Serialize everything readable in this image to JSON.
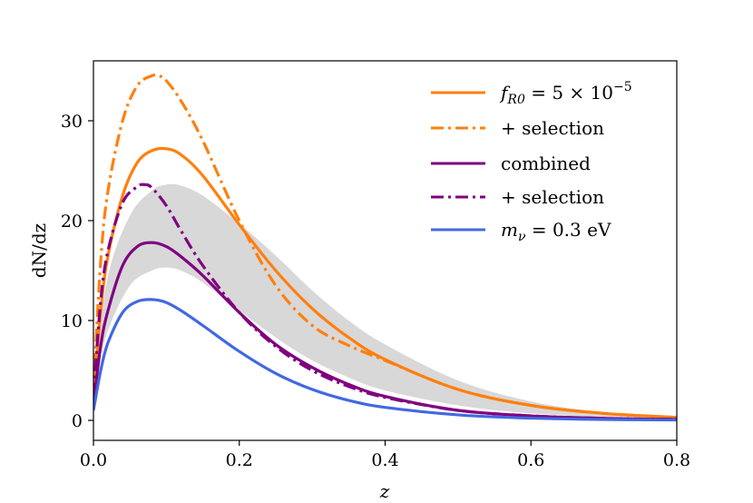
{
  "chart_data": {
    "type": "line",
    "xlabel": "z",
    "ylabel": "dN/dz",
    "xlim": [
      0.0,
      0.8
    ],
    "ylim": [
      -2,
      36
    ],
    "x_ticks": [
      0.0,
      0.2,
      0.4,
      0.6,
      0.8
    ],
    "x_tick_labels": [
      "0.0",
      "0.2",
      "0.4",
      "0.6",
      "0.8"
    ],
    "y_ticks": [
      0,
      10,
      20,
      30
    ],
    "y_tick_labels": [
      "0",
      "10",
      "20",
      "30"
    ],
    "grid": false,
    "legend_position": "top-right",
    "band": {
      "color": "#d8d8d8",
      "x": [
        0.0,
        0.02,
        0.05,
        0.08,
        0.1,
        0.12,
        0.15,
        0.2,
        0.25,
        0.3,
        0.35,
        0.4,
        0.5,
        0.6,
        0.7,
        0.8
      ],
      "lower": [
        3.5,
        9.0,
        13.5,
        15.0,
        15.3,
        15.0,
        13.8,
        11.0,
        8.3,
        6.0,
        4.3,
        3.0,
        1.5,
        0.7,
        0.3,
        0.15
      ],
      "upper": [
        4.5,
        14.5,
        20.5,
        23.0,
        23.6,
        23.5,
        22.5,
        19.7,
        16.5,
        13.0,
        10.0,
        7.6,
        4.0,
        1.9,
        0.8,
        0.35
      ]
    },
    "series": [
      {
        "name": "f_R0 = 5 × 10^-5",
        "color": "#ff7f0e",
        "style": "solid",
        "x": [
          0.0,
          0.01,
          0.02,
          0.04,
          0.06,
          0.08,
          0.1,
          0.12,
          0.15,
          0.2,
          0.25,
          0.3,
          0.35,
          0.4,
          0.5,
          0.6,
          0.7,
          0.8
        ],
        "y": [
          2.0,
          11.0,
          16.5,
          22.5,
          25.8,
          27.0,
          27.2,
          26.6,
          24.5,
          19.6,
          15.0,
          11.2,
          8.3,
          6.1,
          3.1,
          1.5,
          0.7,
          0.3
        ]
      },
      {
        "name": "+ selection",
        "color": "#ff7f0e",
        "style": "dashdot",
        "x": [
          0.0,
          0.01,
          0.02,
          0.04,
          0.06,
          0.08,
          0.09,
          0.1,
          0.12,
          0.15,
          0.2,
          0.25,
          0.3,
          0.35,
          0.4,
          0.5,
          0.6,
          0.7,
          0.8
        ],
        "y": [
          3.0,
          16.0,
          23.0,
          30.0,
          33.5,
          34.5,
          34.5,
          34.0,
          32.0,
          28.0,
          20.0,
          13.5,
          9.5,
          7.5,
          6.0,
          3.1,
          1.5,
          0.7,
          0.3
        ]
      },
      {
        "name": "combined",
        "color": "#800080",
        "style": "solid",
        "x": [
          0.0,
          0.01,
          0.02,
          0.04,
          0.06,
          0.08,
          0.1,
          0.12,
          0.15,
          0.2,
          0.25,
          0.3,
          0.35,
          0.4,
          0.5,
          0.6,
          0.7,
          0.8
        ],
        "y": [
          1.5,
          7.5,
          11.0,
          15.5,
          17.4,
          17.8,
          17.4,
          16.4,
          14.5,
          10.8,
          7.6,
          5.3,
          3.6,
          2.4,
          1.0,
          0.45,
          0.2,
          0.1
        ]
      },
      {
        "name": "+ selection",
        "color": "#800080",
        "style": "dashdot",
        "x": [
          0.0,
          0.01,
          0.02,
          0.04,
          0.06,
          0.07,
          0.08,
          0.1,
          0.12,
          0.15,
          0.2,
          0.25,
          0.3,
          0.35,
          0.4,
          0.5,
          0.6,
          0.7,
          0.8
        ],
        "y": [
          2.5,
          12.0,
          17.0,
          21.8,
          23.4,
          23.6,
          23.3,
          21.5,
          19.0,
          15.5,
          10.8,
          7.4,
          5.0,
          3.4,
          2.3,
          1.0,
          0.45,
          0.2,
          0.1
        ]
      },
      {
        "name": "m_ν = 0.3 eV",
        "color": "#4169e1",
        "style": "solid",
        "x": [
          0.0,
          0.01,
          0.02,
          0.04,
          0.06,
          0.08,
          0.1,
          0.12,
          0.15,
          0.2,
          0.25,
          0.3,
          0.35,
          0.4,
          0.5,
          0.6,
          0.7,
          0.8
        ],
        "y": [
          1.0,
          5.0,
          7.8,
          10.8,
          11.9,
          12.1,
          11.8,
          11.0,
          9.5,
          6.9,
          4.7,
          3.1,
          2.0,
          1.3,
          0.55,
          0.22,
          0.09,
          0.04
        ]
      }
    ]
  }
}
